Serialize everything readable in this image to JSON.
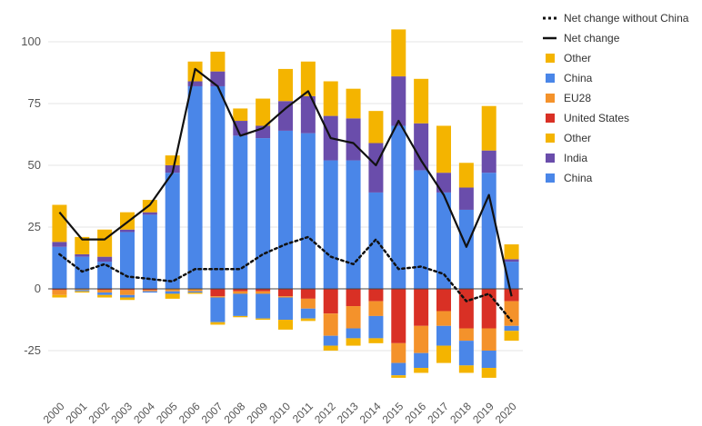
{
  "chart_data": {
    "type": "bar",
    "stacked": true,
    "title": "",
    "xlabel": "",
    "ylabel": "",
    "ylim": [
      -37,
      107
    ],
    "yticks": [
      -25,
      0,
      25,
      50,
      75,
      100
    ],
    "categories": [
      "2000",
      "2001",
      "2002",
      "2003",
      "2004",
      "2005",
      "2006",
      "2007",
      "2008",
      "2009",
      "2010",
      "2011",
      "2012",
      "2013",
      "2014",
      "2015",
      "2016",
      "2017",
      "2018",
      "2019",
      "2020"
    ],
    "positive_series": [
      {
        "name": "China",
        "color": "#4a86e8",
        "values": [
          17,
          13,
          11,
          23,
          30,
          47,
          82,
          82,
          62,
          61,
          64,
          63,
          52,
          52,
          39,
          66,
          48,
          39,
          32,
          47,
          11
        ]
      },
      {
        "name": "India",
        "color": "#6a4dab",
        "values": [
          2,
          1,
          2,
          1,
          1,
          3,
          2,
          6,
          6,
          5,
          12,
          15,
          18,
          17,
          20,
          20,
          19,
          8,
          9,
          9,
          1
        ]
      },
      {
        "name": "Other",
        "color": "#f4b400",
        "values": [
          15,
          7,
          11,
          7,
          5,
          4,
          8,
          8,
          5,
          11,
          13,
          14,
          14,
          12,
          13,
          19,
          18,
          19,
          10,
          18,
          6
        ]
      }
    ],
    "negative_series": [
      {
        "name": "United States",
        "color": "#d93025",
        "values": [
          -0.5,
          0,
          -0.5,
          -0.5,
          -0.5,
          0,
          0,
          -3,
          -1,
          -1,
          -3,
          -4,
          -10,
          -7,
          -5,
          -22,
          -15,
          -9,
          -16,
          -16,
          -5
        ]
      },
      {
        "name": "EU28",
        "color": "#f4922b",
        "values": [
          -2,
          -0.5,
          -1,
          -2,
          -0.5,
          -1,
          -1,
          -0.5,
          -1,
          -1,
          -0.5,
          -4,
          -9,
          -9,
          -6,
          -8,
          -11,
          -6,
          -5,
          -9,
          -10
        ]
      },
      {
        "name": "China",
        "color": "#4a86e8",
        "values": [
          0,
          -0.5,
          -1,
          -1,
          -0.5,
          -1,
          -0.5,
          -10,
          -9,
          -10,
          -9,
          -4,
          -4,
          -4,
          -9,
          -5,
          -6,
          -8,
          -10,
          -7,
          -2
        ]
      },
      {
        "name": "Other",
        "color": "#f4b400",
        "values": [
          -1,
          -0.5,
          -1,
          -1,
          0,
          -2,
          -0.5,
          -1,
          -0.5,
          -0.5,
          -4,
          -1,
          -2,
          -3,
          -2,
          -1,
          -2,
          -7,
          -3,
          -4,
          -4
        ]
      }
    ],
    "lines": [
      {
        "name": "Net change",
        "color": "#111111",
        "dash": false,
        "values": [
          31,
          20,
          20,
          27,
          34,
          47,
          89,
          82,
          62,
          65,
          73,
          80,
          61,
          59,
          50,
          68,
          52,
          38,
          17,
          38,
          -3
        ]
      },
      {
        "name": "Net change without China",
        "color": "#111111",
        "dash": true,
        "values": [
          14,
          7,
          10,
          5,
          4,
          3,
          8,
          8,
          8,
          14,
          18,
          21,
          13,
          10,
          20,
          8,
          9,
          6,
          -5,
          -2,
          -13
        ]
      }
    ],
    "legend": [
      "Net change without China",
      "Net change",
      "Other",
      "China",
      "EU28",
      "United States",
      "Other",
      "India",
      "China"
    ],
    "legend_position": "right"
  },
  "legend": {
    "items": [
      {
        "label": "Net change without China",
        "kind": "dotted-line",
        "color": "#111111"
      },
      {
        "label": "Net change",
        "kind": "solid-line",
        "color": "#111111"
      },
      {
        "label": "Other",
        "kind": "swatch",
        "color": "#f4b400"
      },
      {
        "label": "China",
        "kind": "swatch",
        "color": "#4a86e8"
      },
      {
        "label": "EU28",
        "kind": "swatch",
        "color": "#f4922b"
      },
      {
        "label": "United States",
        "kind": "swatch",
        "color": "#d93025"
      },
      {
        "label": "Other",
        "kind": "swatch",
        "color": "#f4b400"
      },
      {
        "label": "India",
        "kind": "swatch",
        "color": "#6a4dab"
      },
      {
        "label": "China",
        "kind": "swatch",
        "color": "#4a86e8"
      }
    ]
  }
}
